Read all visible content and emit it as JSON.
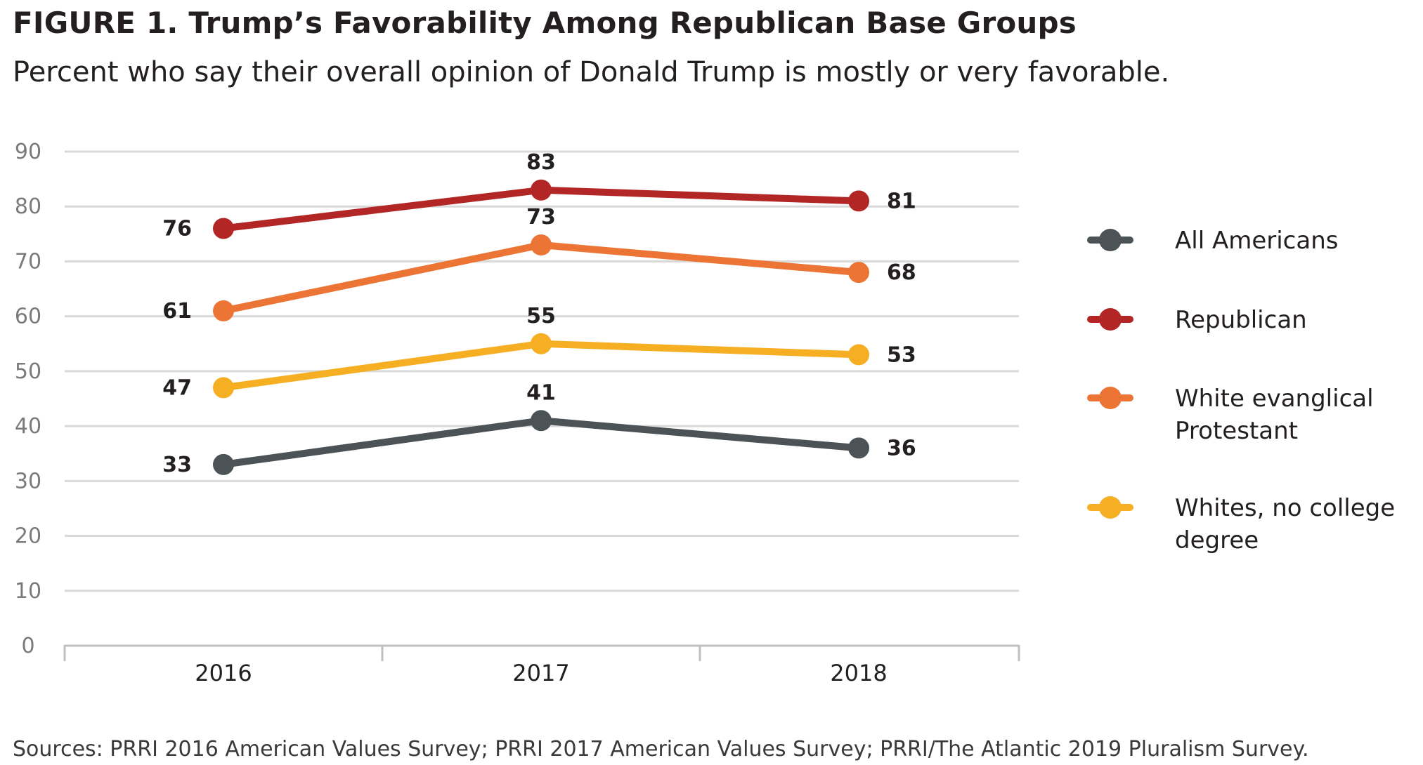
{
  "figure": {
    "title": "FIGURE 1.  Trump’s Favorability Among Republican Base Groups",
    "subtitle": "Percent who say their overall opinion of Donald Trump is mostly or very favorable.",
    "source": "Sources: PRRI 2016 American Values Survey; PRRI 2017 American Values Survey; PRRI/The Atlantic 2019 Pluralism Survey."
  },
  "chart_data": {
    "type": "line",
    "title": "FIGURE 1.  Trump’s Favorability Among Republican Base Groups",
    "subtitle": "Percent who say their overall opinion of Donald Trump is mostly or very favorable.",
    "xlabel": "",
    "ylabel": "",
    "x": [
      "2016",
      "2017",
      "2018"
    ],
    "ylim": [
      0,
      90
    ],
    "yticks": [
      0,
      10,
      20,
      30,
      40,
      50,
      60,
      70,
      80,
      90
    ],
    "grid": true,
    "legend_position": "right",
    "series": [
      {
        "name": "All Americans",
        "legend_lines": [
          "All Americans"
        ],
        "color": "#4b5357",
        "values": [
          33,
          41,
          36
        ]
      },
      {
        "name": "Republican",
        "legend_lines": [
          "Republican"
        ],
        "color": "#b22726",
        "values": [
          76,
          83,
          81
        ]
      },
      {
        "name": "White evanglical Protestant",
        "legend_lines": [
          "White evanglical",
          "Protestant"
        ],
        "color": "#ec7435",
        "values": [
          61,
          73,
          68
        ]
      },
      {
        "name": "Whites, no college degree",
        "legend_lines": [
          "Whites, no college",
          "degree"
        ],
        "color": "#f6ae22",
        "values": [
          47,
          55,
          53
        ]
      }
    ]
  }
}
